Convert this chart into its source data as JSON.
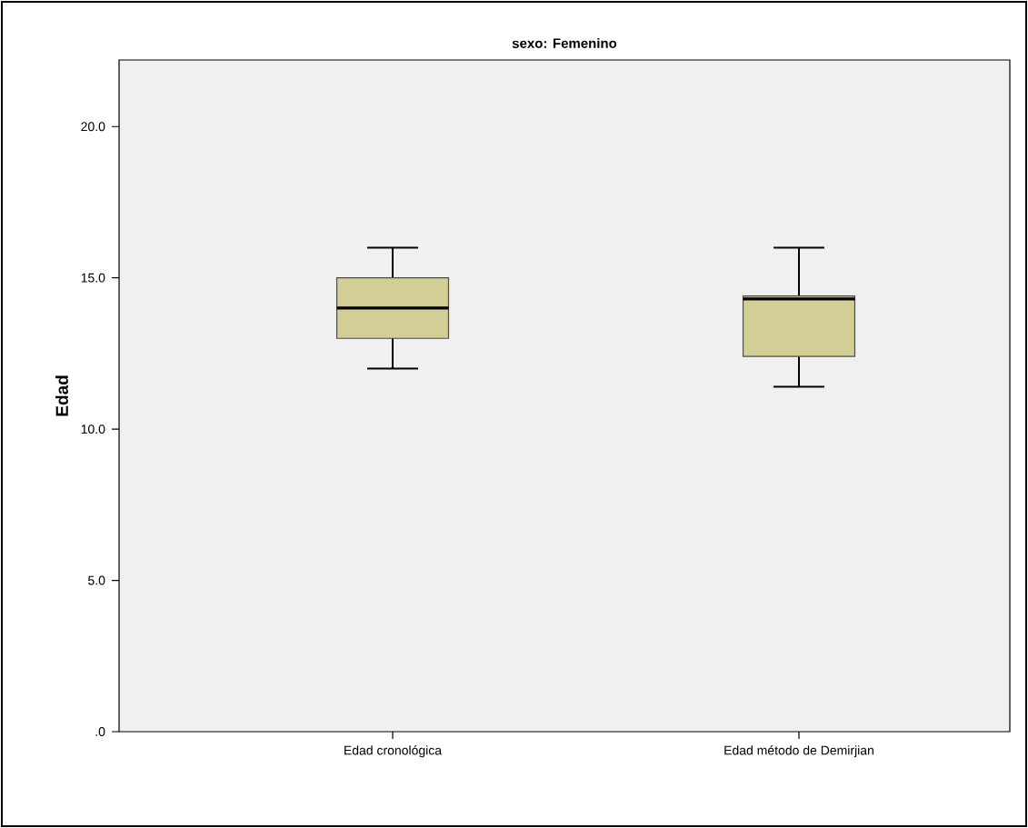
{
  "chart_data": {
    "type": "box",
    "title": "sexo: Femenino",
    "ylabel": "Edad",
    "categories": [
      "Edad cronológica",
      "Edad método de Demirjian"
    ],
    "boxes": [
      {
        "low": 12,
        "q1": 13,
        "median": 14,
        "q3": 15,
        "high": 16
      },
      {
        "low": 11.4,
        "q1": 12.4,
        "median": 14.3,
        "q3": 14.4,
        "high": 16
      }
    ],
    "color": "#d3cd96",
    "ylim": [
      0,
      22.2
    ],
    "yticks": [
      {
        "value": 0,
        "label": ".0"
      },
      {
        "value": 5,
        "label": "5.0"
      },
      {
        "value": 10,
        "label": "10.0"
      },
      {
        "value": 15,
        "label": "15.0"
      },
      {
        "value": 20,
        "label": "20.0"
      }
    ]
  }
}
